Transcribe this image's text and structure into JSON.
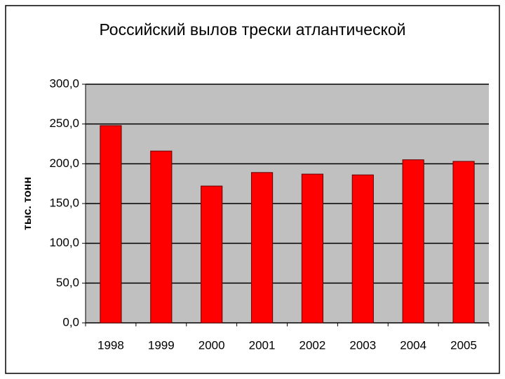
{
  "chart_data": {
    "type": "bar",
    "title": "Российский вылов трески атлантической",
    "ylabel": "тыс. тонн",
    "categories": [
      "1998",
      "1999",
      "2000",
      "2001",
      "2002",
      "2003",
      "2004",
      "2005"
    ],
    "values": [
      248,
      216,
      172,
      189,
      187,
      186,
      205,
      203
    ],
    "color": "#ff0000",
    "ylim": [
      0,
      300
    ],
    "yticks": [
      {
        "value": 0,
        "label": "0,0"
      },
      {
        "value": 50,
        "label": "50,0"
      },
      {
        "value": 100,
        "label": "100,0"
      },
      {
        "value": 150,
        "label": "150,0"
      },
      {
        "value": 200,
        "label": "200,0"
      },
      {
        "value": 250,
        "label": "250,0"
      },
      {
        "value": 300,
        "label": "300,0"
      }
    ],
    "grid": true
  }
}
